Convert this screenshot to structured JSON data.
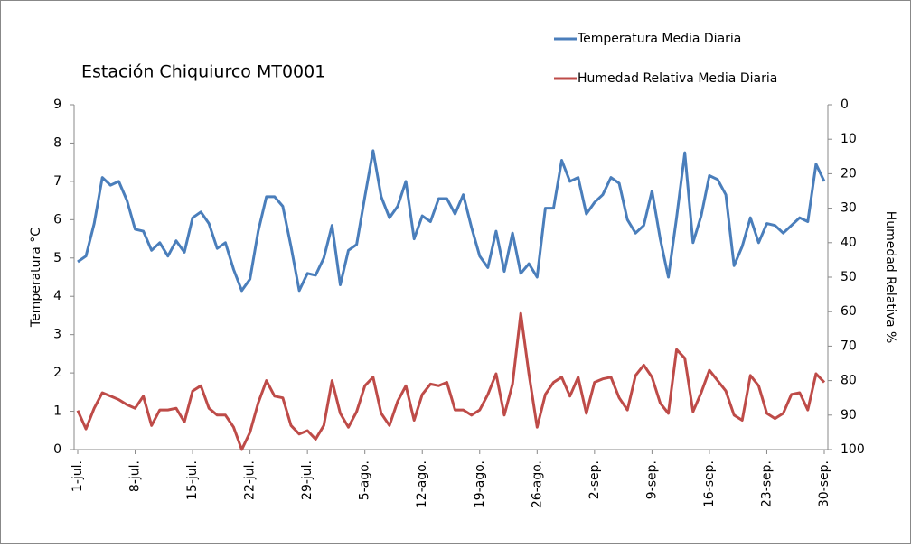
{
  "chart_data": {
    "type": "line",
    "title": "Estación Chiquiurco MT0001",
    "ylabel": "Temperatura °C",
    "y2label": "Humedad Relativa %",
    "categories": [
      "1-jul.",
      null,
      null,
      null,
      null,
      null,
      null,
      "8-jul.",
      null,
      null,
      null,
      null,
      null,
      null,
      "15-jul.",
      null,
      null,
      null,
      null,
      null,
      null,
      "22-jul.",
      null,
      null,
      null,
      null,
      null,
      null,
      "29-jul.",
      null,
      null,
      null,
      null,
      null,
      null,
      "5-ago.",
      null,
      null,
      null,
      null,
      null,
      null,
      "12-ago.",
      null,
      null,
      null,
      null,
      null,
      null,
      "19-ago.",
      null,
      null,
      null,
      null,
      null,
      null,
      "26-ago.",
      null,
      null,
      null,
      null,
      null,
      null,
      "2-sep.",
      null,
      null,
      null,
      null,
      null,
      null,
      "9-sep.",
      null,
      null,
      null,
      null,
      null,
      null,
      "16-sep.",
      null,
      null,
      null,
      null,
      null,
      null,
      "23-sep.",
      null,
      null,
      null,
      null,
      null,
      null,
      "30-sep."
    ],
    "series": [
      {
        "name": "Temperatura Media Diaria",
        "color": "#4a7ebb",
        "values": [
          4.9,
          5.05,
          5.9,
          7.1,
          6.9,
          7.0,
          6.5,
          5.75,
          5.7,
          5.2,
          5.4,
          5.05,
          5.45,
          5.15,
          6.05,
          6.2,
          5.9,
          5.25,
          5.4,
          4.7,
          4.15,
          4.45,
          5.7,
          6.6,
          6.6,
          6.35,
          5.3,
          4.15,
          4.6,
          4.55,
          5.0,
          5.85,
          4.3,
          5.2,
          5.35,
          6.6,
          7.8,
          6.6,
          6.05,
          6.35,
          7.0,
          5.5,
          6.1,
          5.95,
          6.55,
          6.55,
          6.15,
          6.65,
          5.8,
          5.05,
          4.75,
          5.7,
          4.65,
          5.65,
          4.6,
          4.85,
          4.5,
          6.3,
          6.3,
          7.55,
          7.0,
          7.1,
          6.15,
          6.45,
          6.65,
          7.1,
          6.95,
          6.0,
          5.65,
          5.85,
          6.75,
          5.5,
          4.5,
          6.05,
          7.75,
          5.4,
          6.1,
          7.15,
          7.05,
          6.65,
          4.8,
          5.3,
          6.05,
          5.4,
          5.9,
          5.85,
          5.65,
          5.85,
          6.05,
          5.95,
          7.45,
          7.0
        ]
      },
      {
        "name": "Humedad Relativa Media Diaria",
        "color": "#be4b48",
        "axis": "y2",
        "values": [
          88.7,
          94,
          88,
          83.5,
          84.5,
          85.5,
          87,
          88,
          84.5,
          93,
          88.5,
          88.5,
          88,
          92,
          83,
          81.5,
          88,
          90,
          90,
          93.5,
          100,
          95,
          86.5,
          80,
          84.5,
          85,
          93,
          95.5,
          94.5,
          97,
          93,
          80,
          89.5,
          93.5,
          89,
          81.5,
          79,
          89.5,
          93,
          86,
          81.5,
          91.5,
          84,
          81,
          81.5,
          80.5,
          88.5,
          88.5,
          90,
          88.5,
          84,
          78,
          90,
          81,
          60.5,
          78,
          93.5,
          84,
          80.5,
          79,
          84.5,
          79,
          89.5,
          80.5,
          79.5,
          79,
          85,
          88.5,
          78.5,
          75.5,
          79,
          86.5,
          89.5,
          71,
          73.5,
          89,
          83.5,
          77,
          80,
          83,
          90,
          91.5,
          78.5,
          81.5,
          89.5,
          91,
          89.5,
          84,
          83.5,
          88.5,
          78,
          80.5
        ]
      }
    ],
    "ylim": [
      0,
      9
    ],
    "yticks": [
      0,
      1,
      2,
      3,
      4,
      5,
      6,
      7,
      8,
      9
    ],
    "y2lim": [
      100,
      0
    ],
    "y2ticks": [
      0,
      10,
      20,
      30,
      40,
      50,
      60,
      70,
      80,
      90,
      100
    ],
    "grid": false,
    "legend": "top-right"
  }
}
